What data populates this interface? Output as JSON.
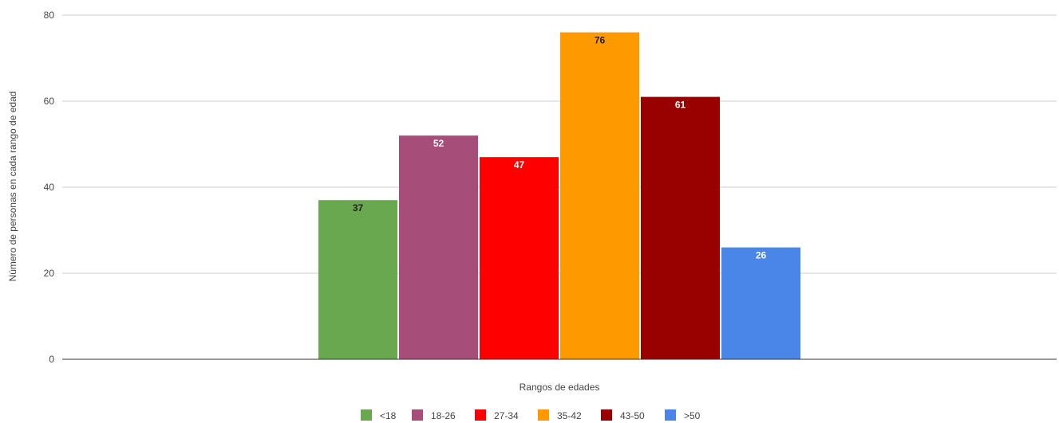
{
  "chart_data": {
    "type": "bar",
    "title": "",
    "xlabel": "Rangos de edades",
    "ylabel": "Número de personas en cada rango de edad",
    "ylim": [
      0,
      80
    ],
    "yticks": [
      0,
      20,
      40,
      60,
      80
    ],
    "grid": true,
    "legend_position": "bottom",
    "series": [
      {
        "name": "<18",
        "values": [
          37
        ],
        "color": "#6aa84f",
        "label_color": "#222222"
      },
      {
        "name": "18-26",
        "values": [
          52
        ],
        "color": "#a64d79",
        "label_color": "#ffffff"
      },
      {
        "name": "27-34",
        "values": [
          47
        ],
        "color": "#ff0000",
        "label_color": "#ffffff"
      },
      {
        "name": "35-42",
        "values": [
          76
        ],
        "color": "#ff9900",
        "label_color": "#222222"
      },
      {
        "name": "43-50",
        "values": [
          61
        ],
        "color": "#990000",
        "label_color": "#ffffff"
      },
      {
        "name": ">50",
        "values": [
          26
        ],
        "color": "#4a86e8",
        "label_color": "#ffffff"
      }
    ]
  }
}
